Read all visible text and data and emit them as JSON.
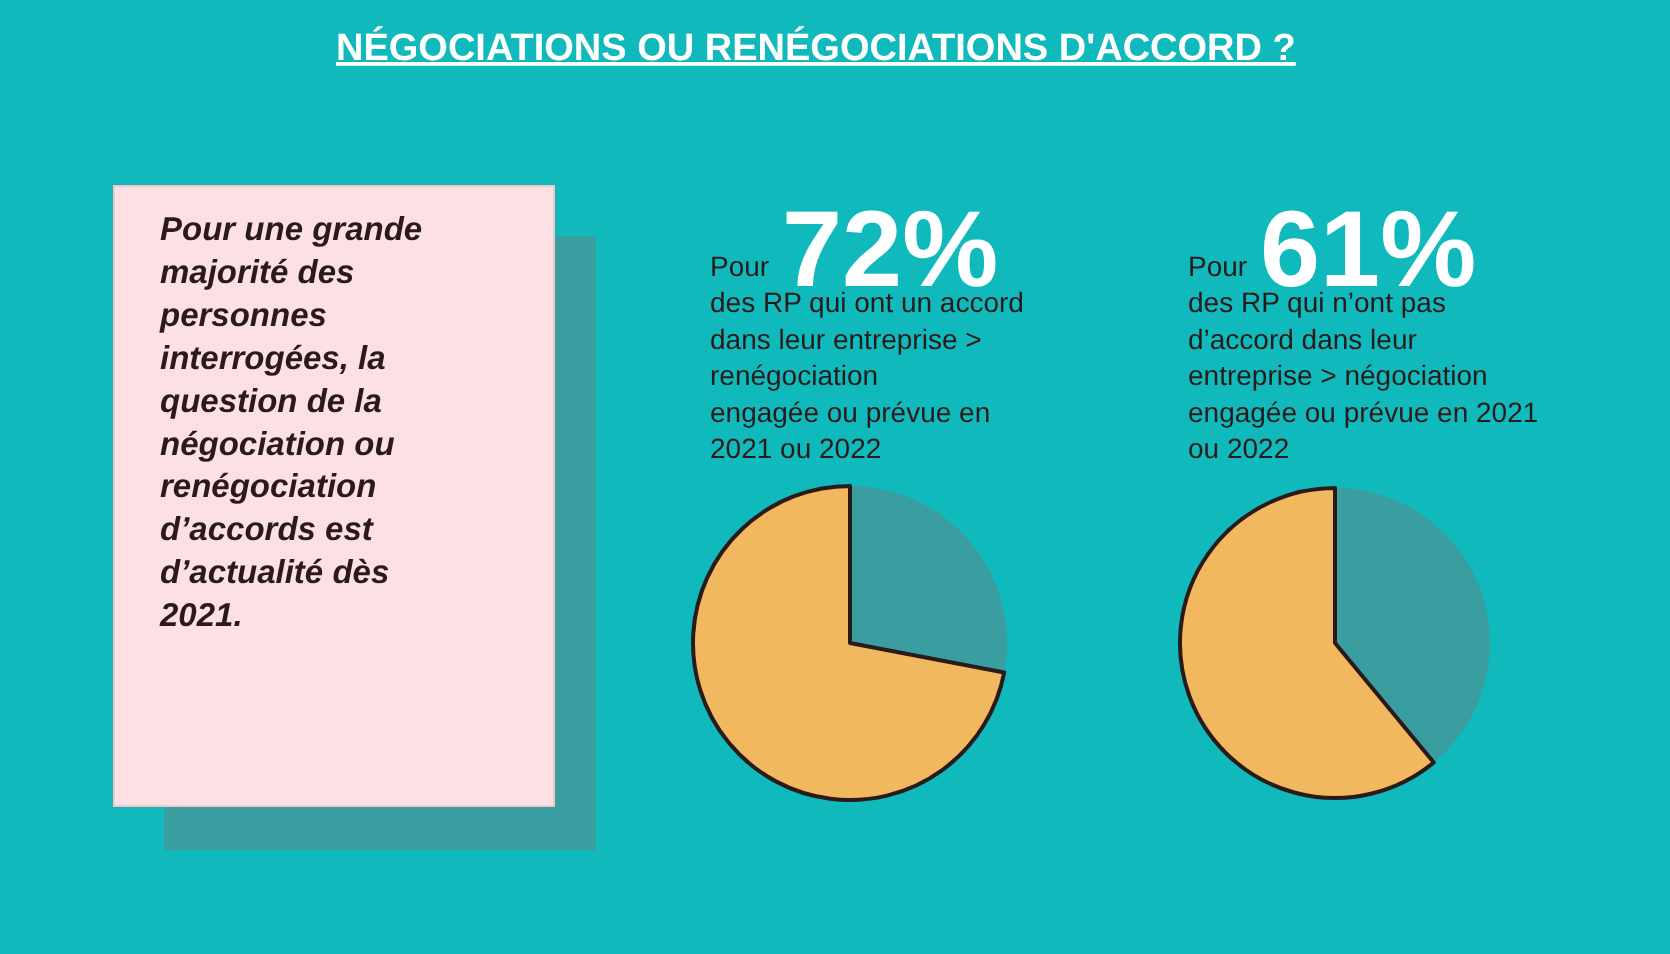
{
  "chart_data": [
    {
      "type": "other",
      "title": "NÉGOCIATIONS OU RENÉGOCIATIONS D'ACCORD ?",
      "annotations": [
        "Pour une grande\nmajorité des\npersonnes\ninterrogées, la\nquestion de la\nnégociation ou\nrenégociation\nd’accords est\nd’actualité dès\n2021."
      ]
    },
    {
      "type": "pie",
      "title": "72%",
      "subtitle": "Pour\ndes RP qui ont un accord\ndans leur entreprise >\nrenégociation\nengagée ou prévue en\n2021 ou 2022",
      "categories": [
        null,
        null
      ],
      "values": [
        28,
        72
      ],
      "colors": [
        "#3a9ea0",
        "#f2b860"
      ]
    },
    {
      "type": "pie",
      "title": "61%",
      "subtitle": "Pour\ndes RP qui n’ont pas\nd’accord dans leur\nentreprise > négociation\nengagée ou prévue en 2021\nou 2022",
      "categories": [
        null,
        null
      ],
      "values": [
        39,
        61
      ],
      "colors": [
        "#3a9ea0",
        "#f2b860"
      ]
    }
  ]
}
